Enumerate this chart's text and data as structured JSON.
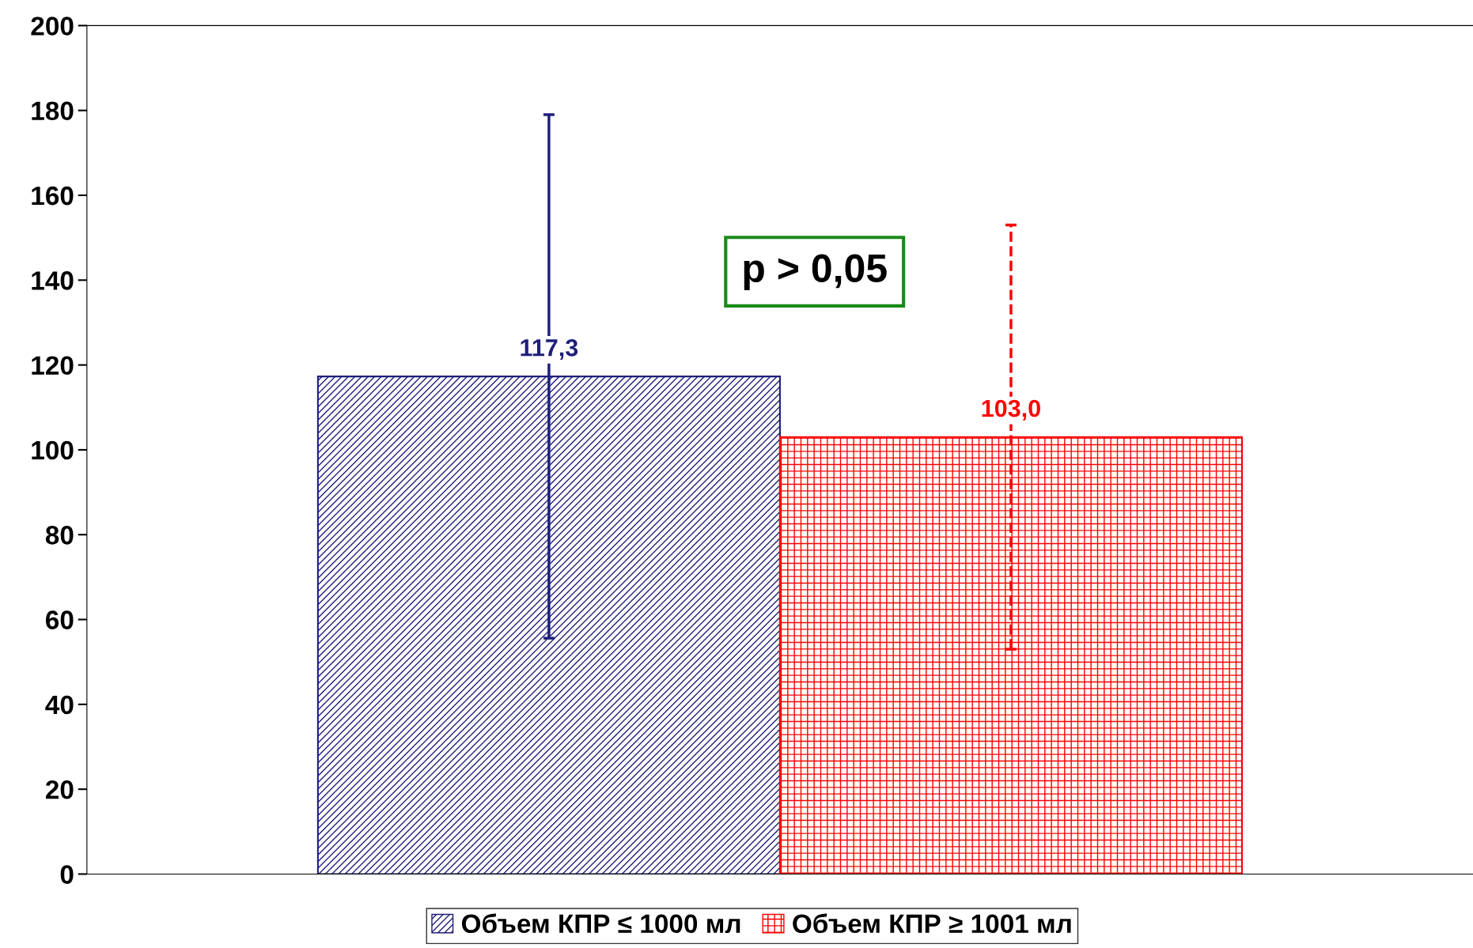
{
  "chart_data": {
    "type": "bar",
    "categories": [
      null
    ],
    "series": [
      {
        "name": "Объем КПР ≤ 1000 мл",
        "color": "#1f1f7a",
        "values": [
          117.3
        ],
        "value_labels": [
          "117,3"
        ],
        "errors": [
          61.7
        ],
        "line_style": "solid"
      },
      {
        "name": "Объем КПР ≥ 1001 мл",
        "color": "#ff0000",
        "values": [
          103.0
        ],
        "value_labels": [
          "103,0"
        ],
        "errors": [
          50
        ],
        "line_style": "dashed"
      }
    ],
    "ylim": [
      0,
      200
    ],
    "yticks": [
      0,
      20,
      40,
      60,
      80,
      100,
      120,
      140,
      160,
      180,
      200
    ],
    "annotations": [
      "p > 0,05"
    ],
    "grid": false,
    "legend": "bottom"
  }
}
